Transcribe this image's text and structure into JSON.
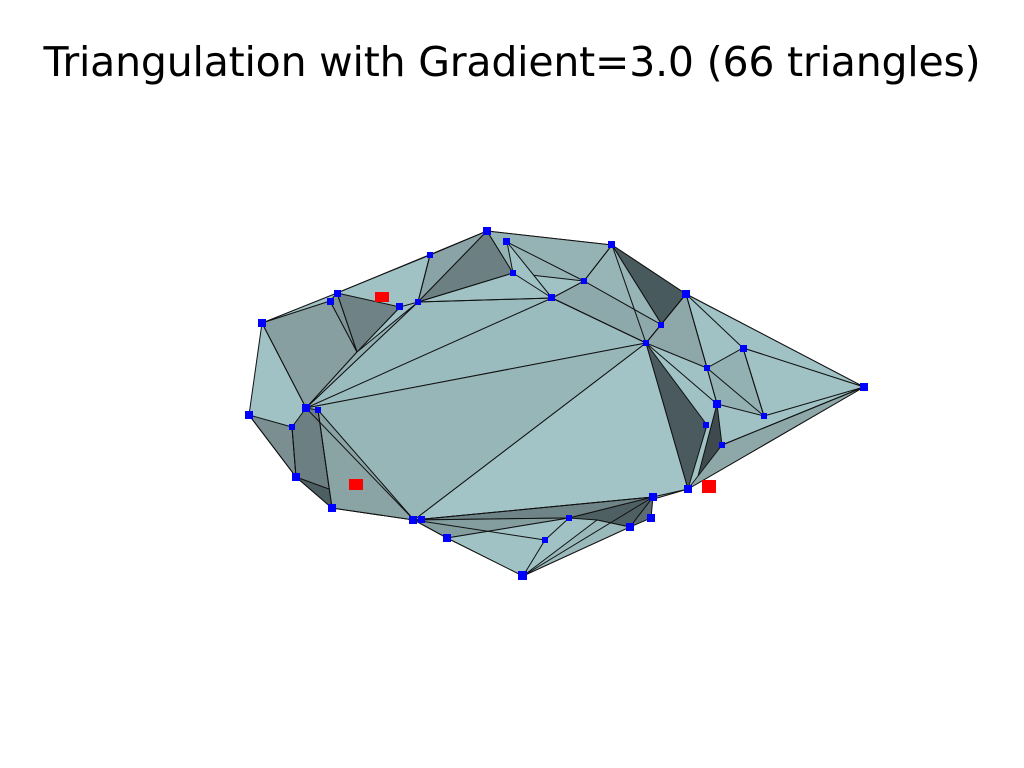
{
  "figure": {
    "title": "Triangulation with Gradient=3.0 (66 triangles)",
    "triangle_count": 66,
    "gradient": 3.0,
    "colors": {
      "background": "#ffffff",
      "face_light": "#a0c2c4",
      "face_mid": "#8aa6a8",
      "face_dark": "#4c5c60",
      "edge": "#111111",
      "vertex": "#0000ff",
      "highlight_point": "#ff0000"
    },
    "legend": "none",
    "axes": "hidden"
  }
}
